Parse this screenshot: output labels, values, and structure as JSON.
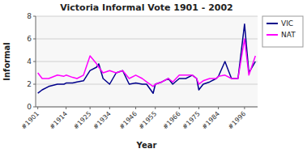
{
  "chart_data": {
    "type": "line",
    "title": "Victoria Informal Vote 1901 - 2002",
    "xlabel": "Year",
    "ylabel": "Informal",
    "x": [
      1901,
      1903,
      1906,
      1910,
      1913,
      1914,
      1917,
      1919,
      1922,
      1925,
      1928,
      1929,
      1931,
      1934,
      1937,
      1940,
      1943,
      1946,
      1949,
      1951,
      1954,
      1955,
      1958,
      1961,
      1963,
      1966,
      1969,
      1972,
      1974,
      1975,
      1977,
      1980,
      1983,
      1984,
      1987,
      1990,
      1993,
      1996,
      1998,
      2001
    ],
    "series": [
      {
        "name": "VIC",
        "color": "#00008B",
        "values": [
          1.2,
          1.5,
          1.8,
          2.0,
          2.0,
          2.1,
          2.1,
          2.2,
          2.3,
          3.2,
          3.5,
          3.8,
          2.5,
          2.0,
          3.0,
          3.2,
          2.0,
          2.1,
          2.0,
          2.0,
          1.2,
          2.0,
          2.2,
          2.5,
          2.0,
          2.5,
          2.5,
          2.8,
          2.5,
          1.5,
          2.0,
          2.2,
          2.5,
          2.7,
          4.0,
          2.5,
          2.5,
          7.3,
          3.0,
          4.0
        ]
      },
      {
        "name": "NAT",
        "color": "#FF00FF",
        "values": [
          3.0,
          2.5,
          2.5,
          2.8,
          2.7,
          2.8,
          2.6,
          2.5,
          2.8,
          4.5,
          3.8,
          3.5,
          3.0,
          3.2,
          3.0,
          3.2,
          2.5,
          2.8,
          2.5,
          2.2,
          1.8,
          2.0,
          2.2,
          2.5,
          2.2,
          2.8,
          2.8,
          2.8,
          2.5,
          2.0,
          2.3,
          2.5,
          2.5,
          2.7,
          2.8,
          2.5,
          2.5,
          6.0,
          2.8,
          4.5
        ]
      }
    ],
    "xlim": [
      1900,
      2002
    ],
    "xticks": [
      {
        "value": 1901,
        "label": "#1901"
      },
      {
        "value": 1914,
        "label": "#1914"
      },
      {
        "value": 1925,
        "label": "#1925"
      },
      {
        "value": 1934,
        "label": "#1934"
      },
      {
        "value": 1946,
        "label": "#1946"
      },
      {
        "value": 1955,
        "label": "#1955"
      },
      {
        "value": 1966,
        "label": "#1966"
      },
      {
        "value": 1975,
        "label": "#1975"
      },
      {
        "value": 1984,
        "label": "#1984"
      },
      {
        "value": 1996,
        "label": "#1996"
      }
    ],
    "ylim": [
      0,
      8
    ],
    "yticks": [
      0,
      2,
      4,
      6,
      8
    ],
    "grid": true,
    "legend": "right"
  }
}
